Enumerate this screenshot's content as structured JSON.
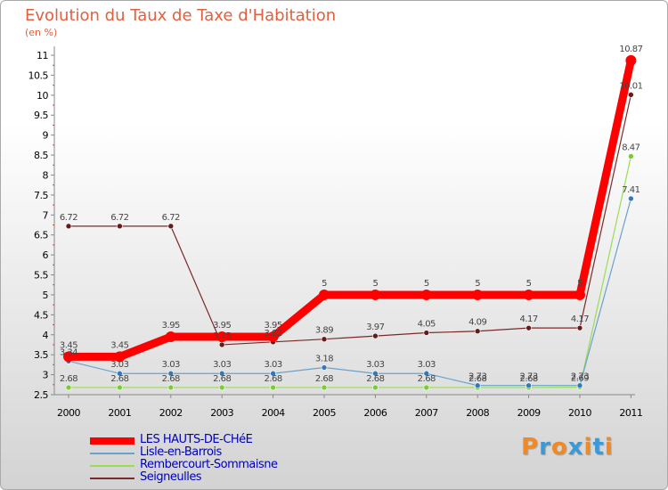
{
  "chart_data": {
    "type": "line",
    "title": "Evolution du Taux de Taxe d'Habitation",
    "ylabel": "(en %)",
    "xlabel": "",
    "categories": [
      "2000",
      "2001",
      "2002",
      "2003",
      "2004",
      "2005",
      "2006",
      "2007",
      "2008",
      "2009",
      "2010",
      "2011"
    ],
    "ylim": [
      2.5,
      11
    ],
    "yticks": [
      "2.5",
      "3",
      "3.5",
      "4",
      "4.5",
      "5",
      "5.5",
      "6",
      "6.5",
      "7",
      "7.5",
      "8",
      "8.5",
      "9",
      "9.5",
      "10",
      "10.5",
      "11"
    ],
    "grid": false,
    "legend_position": "bottom-left",
    "series": [
      {
        "name": "LES HAUTS-DE-CHéE",
        "color": "#ff0000",
        "marker_color": "#ff0000",
        "values": [
          3.45,
          3.45,
          3.95,
          3.95,
          3.95,
          5,
          5,
          5,
          5,
          5,
          5,
          10.87
        ],
        "labels": [
          "3.45",
          "3.45",
          "3.95",
          "3.95",
          "3.95",
          "5",
          "5",
          "5",
          "5",
          "5",
          "5",
          "10.87"
        ]
      },
      {
        "name": "Lisle-en-Barrois",
        "color": "#6aa2cc",
        "marker_color": "#3378b8",
        "values": [
          3.34,
          3.03,
          3.03,
          3.03,
          3.03,
          3.18,
          3.03,
          3.03,
          2.73,
          2.73,
          2.73,
          7.41
        ],
        "labels": [
          "3.34",
          "3.03",
          "3.03",
          "3.03",
          "3.03",
          "3.18",
          "3.03",
          "3.03",
          "2.73",
          "2.73",
          "2.73",
          "7.41"
        ]
      },
      {
        "name": "Rembercourt-Sommaisne",
        "color": "#99dd55",
        "marker_color": "#7acc33",
        "values": [
          2.68,
          2.68,
          2.68,
          2.68,
          2.68,
          2.68,
          2.68,
          2.68,
          2.68,
          2.68,
          2.69,
          8.47
        ],
        "labels": [
          "2.68",
          "2.68",
          "2.68",
          "2.68",
          "2.68",
          "2.68",
          "2.68",
          "2.68",
          "2.68",
          "2.68",
          "2.69",
          "8.47"
        ]
      },
      {
        "name": "Seigneulles",
        "color": "#7a2a2a",
        "marker_color": "#661a1a",
        "values": [
          6.72,
          6.72,
          6.72,
          3.75,
          3.82,
          3.89,
          3.97,
          4.05,
          4.09,
          4.17,
          4.17,
          10.01
        ],
        "labels": [
          "6.72",
          "6.72",
          "6.72",
          "3.75",
          "3.82",
          "3.89",
          "3.97",
          "4.05",
          "4.09",
          "4.17",
          "4.17",
          "10.01"
        ]
      }
    ]
  },
  "logo": {
    "text": "Proxiti",
    "letters": [
      "P",
      "r",
      "o",
      "x",
      "i",
      "t",
      "i"
    ],
    "colors": [
      "#f08a24",
      "#3a9ad9",
      "#f08a24",
      "#3a9ad9",
      "#f08a24",
      "#3a9ad9",
      "#f08a24"
    ]
  }
}
